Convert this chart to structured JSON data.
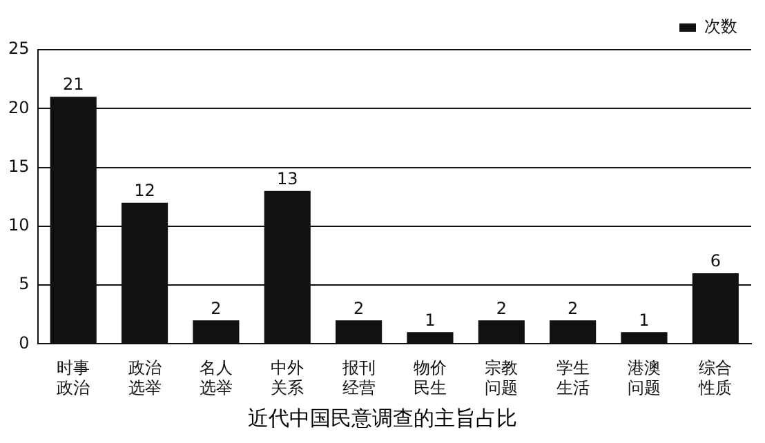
{
  "chart_data": {
    "type": "bar",
    "title": "近代中国民意调查的主旨占比",
    "categories": [
      "时事政治",
      "政治选举",
      "名人选举",
      "中外关系",
      "报刊经营",
      "物价民生",
      "宗教问题",
      "学生生活",
      "港澳问题",
      "综合性质"
    ],
    "series": [
      {
        "name": "次数",
        "color": "#111111",
        "values": [
          21,
          12,
          2,
          13,
          2,
          1,
          2,
          2,
          1,
          6
        ]
      }
    ],
    "ylim": [
      0,
      25
    ],
    "yticks": [
      0,
      5,
      10,
      15,
      20,
      25
    ],
    "grid": "y",
    "legend": "top right",
    "data_labels": true
  }
}
